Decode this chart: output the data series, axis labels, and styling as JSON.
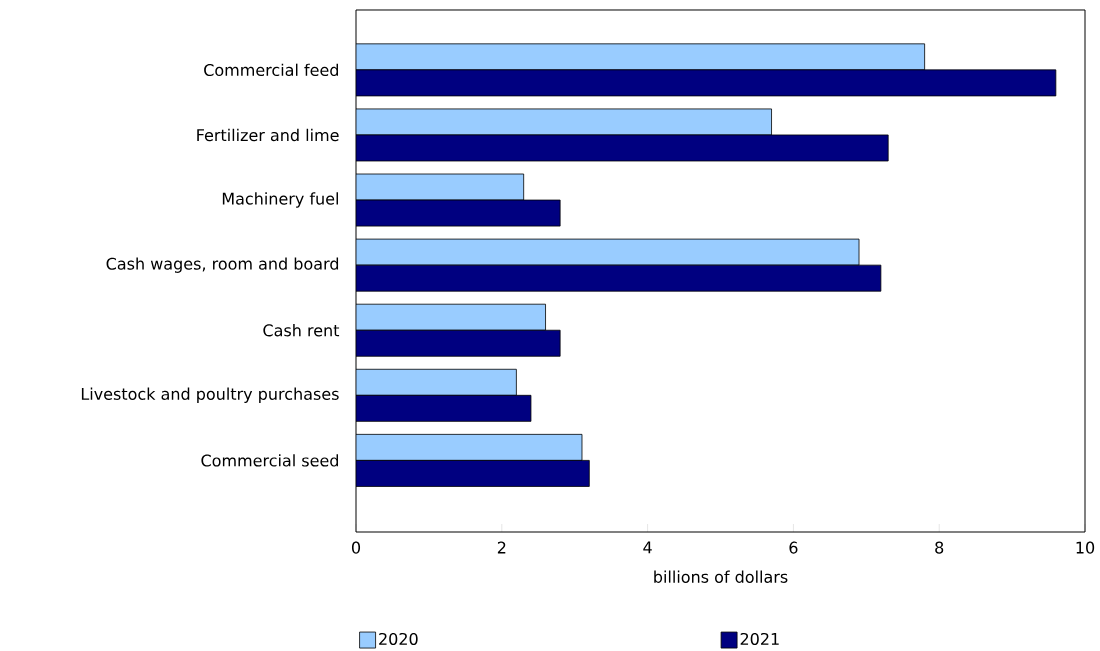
{
  "chart_data": {
    "type": "bar",
    "orientation": "horizontal",
    "xlabel": "billions of dollars",
    "categories": [
      "Commercial feed",
      "Fertilizer and lime",
      "Machinery fuel",
      "Cash wages, room and board",
      "Cash rent",
      "Livestock and poultry purchases",
      "Commercial seed"
    ],
    "series": [
      {
        "name": "2020",
        "color": "#99ccff",
        "values": [
          7.8,
          5.7,
          2.3,
          6.9,
          2.6,
          2.2,
          3.1
        ]
      },
      {
        "name": "2021",
        "color": "#000080",
        "values": [
          9.6,
          7.3,
          2.8,
          7.2,
          2.8,
          2.4,
          3.2
        ]
      }
    ],
    "xlim": [
      0,
      10
    ],
    "xticks": [
      0,
      2,
      4,
      6,
      8,
      10
    ],
    "legend": "bottom"
  }
}
